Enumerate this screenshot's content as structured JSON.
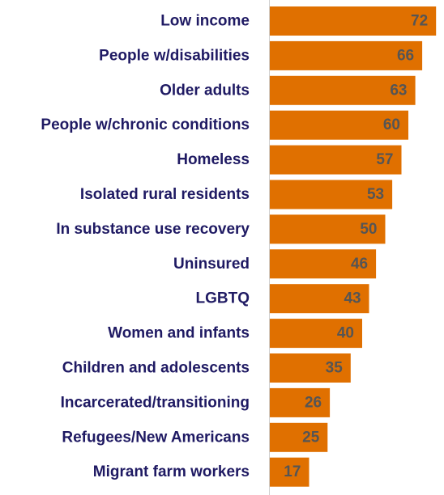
{
  "chart_data": {
    "type": "bar",
    "orientation": "horizontal",
    "categories": [
      "Low income",
      "People w/disabilities",
      "Older adults",
      "People w/chronic conditions",
      "Homeless",
      "Isolated rural residents",
      "In substance use recovery",
      "Uninsured",
      "LGBTQ",
      "Women and infants",
      "Children and adolescents",
      "Incarcerated/transitioning",
      "Refugees/New Americans",
      "Migrant farm workers"
    ],
    "values": [
      72,
      66,
      63,
      60,
      57,
      53,
      50,
      46,
      43,
      40,
      35,
      26,
      25,
      17
    ],
    "title": "",
    "xlabel": "",
    "ylabel": "",
    "xlim": [
      0,
      75
    ],
    "grid": false,
    "legend": "none",
    "colors": {
      "bar": "#e07000",
      "category_text": "#1f1a63",
      "value_text": "#555555",
      "axis": "#d0d0d0"
    }
  }
}
